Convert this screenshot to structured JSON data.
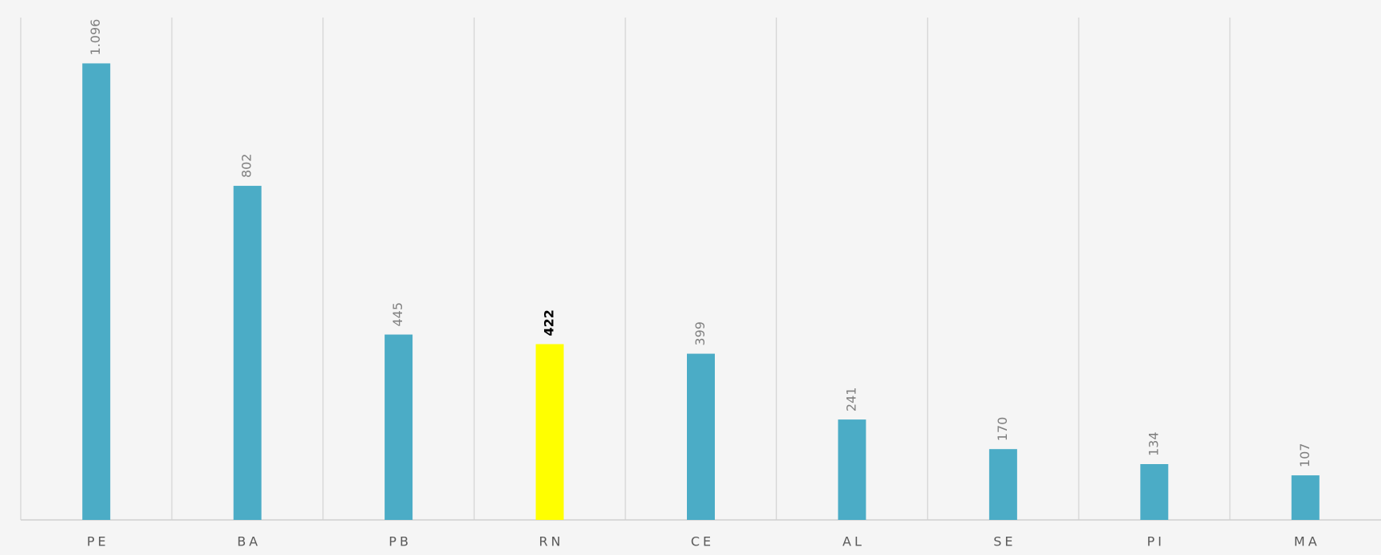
{
  "chart_data": {
    "type": "bar",
    "categories": [
      "PE",
      "BA",
      "PB",
      "RN",
      "CE",
      "AL",
      "SE",
      "PI",
      "MA"
    ],
    "values": [
      1096,
      802,
      445,
      422,
      399,
      241,
      170,
      134,
      107
    ],
    "value_labels": [
      "1.096",
      "802",
      "445",
      "422",
      "399",
      "241",
      "170",
      "134",
      "107"
    ],
    "colors": [
      "#4bacc6",
      "#4bacc6",
      "#4bacc6",
      "#ffff00",
      "#4bacc6",
      "#4bacc6",
      "#4bacc6",
      "#4bacc6",
      "#4bacc6"
    ],
    "label_colors": [
      "#808080",
      "#808080",
      "#808080",
      "#000000",
      "#808080",
      "#808080",
      "#808080",
      "#808080",
      "#808080"
    ],
    "label_weights": [
      "normal",
      "normal",
      "normal",
      "bold",
      "normal",
      "normal",
      "normal",
      "normal",
      "normal"
    ],
    "ylim": [
      0,
      1206
    ]
  }
}
